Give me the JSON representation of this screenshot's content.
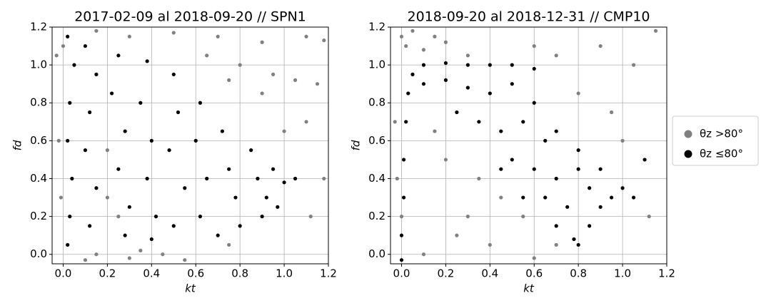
{
  "chart_data": [
    {
      "type": "scatter",
      "title": "2017-02-09 al 2018-09-20 // SPN1",
      "x_label": "kt",
      "y_label": "fd",
      "xlim": [
        -0.05,
        1.2
      ],
      "ylim": [
        -0.05,
        1.2
      ],
      "grid": true,
      "xticks": [
        {
          "value": 0,
          "label": "0.0"
        },
        {
          "value": 0.2,
          "label": "0.2"
        },
        {
          "value": 0.4,
          "label": "0.4"
        },
        {
          "value": 0.6,
          "label": "0.6"
        },
        {
          "value": 0.8,
          "label": "0.8"
        },
        {
          "value": 1,
          "label": "1.0"
        },
        {
          "value": 1.2,
          "label": "1.2"
        }
      ],
      "yticks": [
        {
          "value": 0,
          "label": "0.0"
        },
        {
          "value": 0.2,
          "label": "0.2"
        },
        {
          "value": 0.4,
          "label": "0.4"
        },
        {
          "value": 0.6,
          "label": "0.6"
        },
        {
          "value": 0.8,
          "label": "0.8"
        },
        {
          "value": 1,
          "label": "1.0"
        },
        {
          "value": 1.2,
          "label": "1.2"
        }
      ],
      "legend": "right",
      "series": [
        {
          "name": "θz >80°",
          "color": "#808080",
          "x": [
            0.0,
            -0.03,
            -0.02,
            -0.01,
            0.15,
            0.3,
            0.5,
            0.7,
            0.9,
            1.1,
            1.18,
            0.65,
            0.8,
            0.95,
            1.05,
            1.15,
            0.75,
            0.9,
            1.1,
            1.0,
            1.18,
            0.2,
            0.25,
            0.15,
            0.3,
            0.45,
            0.55,
            0.2,
            0.1,
            0.35,
            0.75,
            1.12
          ],
          "y": [
            1.1,
            1.05,
            0.6,
            0.3,
            1.18,
            1.15,
            1.17,
            1.15,
            1.12,
            1.15,
            1.13,
            1.05,
            1.0,
            0.95,
            0.92,
            0.9,
            0.92,
            0.85,
            0.7,
            0.65,
            0.4,
            0.3,
            0.2,
            0.0,
            -0.02,
            0.0,
            -0.03,
            0.55,
            -0.03,
            0.02,
            0.05,
            0.2
          ]
        },
        {
          "name": "θz ≤80°",
          "color": "#000000",
          "x": [
            0.02,
            0.05,
            0.03,
            0.02,
            0.04,
            0.03,
            0.02,
            0.1,
            0.15,
            0.12,
            0.1,
            0.15,
            0.12,
            0.25,
            0.22,
            0.28,
            0.25,
            0.3,
            0.28,
            0.38,
            0.35,
            0.4,
            0.38,
            0.42,
            0.4,
            0.5,
            0.52,
            0.48,
            0.55,
            0.5,
            0.62,
            0.6,
            0.65,
            0.62,
            0.7,
            0.72,
            0.75,
            0.78,
            0.8,
            0.85,
            0.88,
            0.92,
            0.95,
            1.0,
            1.05,
            0.97,
            0.9
          ],
          "y": [
            1.15,
            1.0,
            0.8,
            0.6,
            0.4,
            0.2,
            0.05,
            1.1,
            0.95,
            0.75,
            0.55,
            0.35,
            0.15,
            1.05,
            0.85,
            0.65,
            0.45,
            0.25,
            0.1,
            1.02,
            0.8,
            0.6,
            0.4,
            0.2,
            0.08,
            0.95,
            0.75,
            0.55,
            0.35,
            0.15,
            0.8,
            0.6,
            0.4,
            0.2,
            0.1,
            0.65,
            0.45,
            0.3,
            0.15,
            0.55,
            0.4,
            0.3,
            0.45,
            0.38,
            0.4,
            0.25,
            0.2
          ]
        }
      ]
    },
    {
      "type": "scatter",
      "title": "2018-09-20 al 2018-12-31 // CMP10",
      "x_label": "kt",
      "y_label": "fd",
      "xlim": [
        -0.05,
        1.2
      ],
      "ylim": [
        -0.05,
        1.2
      ],
      "grid": true,
      "xticks": [
        {
          "value": 0,
          "label": "0.0"
        },
        {
          "value": 0.2,
          "label": "0.2"
        },
        {
          "value": 0.4,
          "label": "0.4"
        },
        {
          "value": 0.6,
          "label": "0.6"
        },
        {
          "value": 0.8,
          "label": "0.8"
        },
        {
          "value": 1,
          "label": "1.0"
        },
        {
          "value": 1.2,
          "label": "1.2"
        }
      ],
      "yticks": [
        {
          "value": 0,
          "label": "0.0"
        },
        {
          "value": 0.2,
          "label": "0.2"
        },
        {
          "value": 0.4,
          "label": "0.4"
        },
        {
          "value": 0.6,
          "label": "0.6"
        },
        {
          "value": 0.8,
          "label": "0.8"
        },
        {
          "value": 1,
          "label": "1.0"
        },
        {
          "value": 1.2,
          "label": "1.2"
        }
      ],
      "series": [
        {
          "color": "#808080",
          "x": [
            0.0,
            0.02,
            0.05,
            0.1,
            0.2,
            0.3,
            0.15,
            0.6,
            0.7,
            0.9,
            1.05,
            1.15,
            -0.03,
            -0.02,
            0.0,
            0.15,
            0.2,
            0.35,
            0.45,
            0.55,
            0.25,
            0.4,
            0.6,
            0.3,
            0.7,
            0.95,
            1.0,
            1.12,
            0.1,
            0.8
          ],
          "y": [
            1.15,
            1.1,
            1.18,
            1.08,
            1.12,
            1.05,
            1.15,
            1.1,
            1.05,
            1.1,
            1.0,
            1.18,
            0.7,
            0.4,
            0.2,
            0.65,
            0.5,
            0.4,
            0.3,
            0.2,
            0.1,
            0.05,
            -0.02,
            0.2,
            0.05,
            0.75,
            0.6,
            0.2,
            0.0,
            0.85
          ]
        },
        {
          "color": "#000000",
          "x": [
            0.0,
            0.0,
            0.01,
            0.01,
            0.02,
            0.03,
            0.05,
            0.1,
            0.2,
            0.3,
            0.4,
            0.5,
            0.6,
            0.1,
            0.2,
            0.3,
            0.4,
            0.5,
            0.6,
            0.25,
            0.35,
            0.45,
            0.55,
            0.65,
            0.7,
            0.5,
            0.6,
            0.7,
            0.8,
            0.55,
            0.65,
            0.75,
            0.85,
            0.7,
            0.78,
            0.8,
            0.85,
            0.9,
            0.95,
            1.0,
            1.05,
            0.9,
            0.8,
            1.1,
            0.45
          ],
          "y": [
            -0.03,
            0.1,
            0.3,
            0.5,
            0.7,
            0.85,
            0.95,
            1.0,
            1.01,
            1.0,
            1.0,
            1.0,
            0.98,
            0.9,
            0.92,
            0.88,
            0.85,
            0.9,
            0.8,
            0.75,
            0.7,
            0.65,
            0.7,
            0.6,
            0.65,
            0.5,
            0.45,
            0.4,
            0.45,
            0.3,
            0.3,
            0.25,
            0.35,
            0.15,
            0.08,
            0.05,
            0.15,
            0.25,
            0.3,
            0.35,
            0.3,
            0.45,
            0.55,
            0.5,
            0.45
          ]
        }
      ]
    }
  ]
}
